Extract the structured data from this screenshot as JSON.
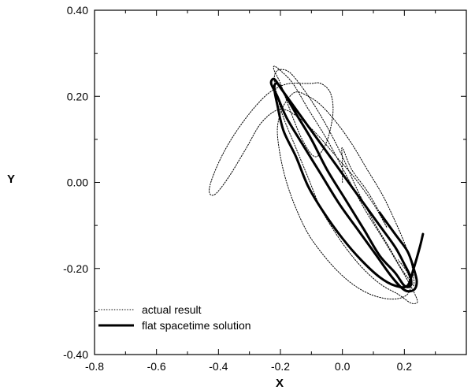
{
  "chart_data": {
    "type": "line",
    "xlabel": "X",
    "ylabel": "Y",
    "xlim": [
      -0.8,
      0.4
    ],
    "ylim": [
      -0.4,
      0.4
    ],
    "x_ticks": [
      -0.8,
      -0.6,
      -0.4,
      -0.2,
      0.0,
      0.2
    ],
    "x_tick_labels": [
      "-0.8",
      "-0.6",
      "-0.4",
      "-0.2",
      "0.0",
      "0.2"
    ],
    "y_ticks": [
      -0.4,
      -0.2,
      0.0,
      0.2,
      0.4
    ],
    "y_tick_labels": [
      "-0.40",
      "-0.20",
      "0.00",
      "0.20",
      "0.40"
    ],
    "legend_position": "bottom-left",
    "series": [
      {
        "name": "actual result",
        "style": "dotted",
        "color": "#000000",
        "x": [
          0.0,
          0.0,
          0.0,
          0.03,
          0.08,
          0.12,
          0.14,
          0.14,
          0.1,
          0.04,
          -0.02,
          -0.08,
          -0.14,
          -0.2,
          -0.26,
          -0.31,
          -0.36,
          -0.4,
          -0.42,
          -0.43,
          -0.42,
          -0.39,
          -0.35,
          -0.3,
          -0.25,
          -0.21,
          -0.17,
          -0.13,
          -0.1,
          -0.07,
          -0.04,
          -0.03,
          -0.04,
          -0.06,
          -0.09,
          -0.13,
          -0.17,
          -0.2,
          -0.22,
          -0.22,
          -0.2,
          -0.16,
          -0.11,
          -0.05,
          0.01,
          0.07,
          0.13,
          0.18,
          0.22,
          0.24,
          0.24,
          0.22,
          0.18,
          0.13,
          0.08,
          0.03,
          -0.02,
          -0.07,
          -0.11,
          -0.15,
          -0.19,
          -0.21,
          -0.22,
          -0.21,
          -0.18,
          -0.15,
          -0.1,
          -0.05,
          0.0,
          0.05,
          0.1,
          0.15,
          0.19,
          0.22,
          0.23,
          0.23,
          0.22,
          0.2,
          0.17,
          0.13,
          0.08,
          0.03,
          -0.02,
          -0.07,
          -0.11,
          -0.15,
          -0.18,
          -0.2,
          -0.21,
          -0.2,
          -0.18,
          -0.15,
          -0.11,
          -0.06,
          -0.01,
          0.04,
          0.09,
          0.14,
          0.18,
          0.21,
          0.22,
          0.21,
          0.18
        ],
        "y": [
          0.0,
          0.05,
          0.08,
          0.03,
          -0.02,
          -0.07,
          -0.1,
          -0.1,
          -0.05,
          0.01,
          0.06,
          0.11,
          0.15,
          0.17,
          0.14,
          0.08,
          0.02,
          -0.02,
          -0.03,
          -0.02,
          0.01,
          0.06,
          0.11,
          0.16,
          0.2,
          0.22,
          0.23,
          0.23,
          0.23,
          0.23,
          0.21,
          0.17,
          0.12,
          0.08,
          0.06,
          0.1,
          0.17,
          0.23,
          0.26,
          0.27,
          0.26,
          0.23,
          0.17,
          0.1,
          0.02,
          -0.06,
          -0.13,
          -0.19,
          -0.24,
          -0.27,
          -0.28,
          -0.28,
          -0.26,
          -0.24,
          -0.21,
          -0.17,
          -0.12,
          -0.06,
          0.01,
          0.08,
          0.15,
          0.2,
          0.24,
          0.26,
          0.26,
          0.24,
          0.19,
          0.13,
          0.06,
          -0.02,
          -0.09,
          -0.15,
          -0.2,
          -0.23,
          -0.24,
          -0.22,
          -0.18,
          -0.14,
          -0.09,
          -0.03,
          0.03,
          0.09,
          0.14,
          0.18,
          0.2,
          0.21,
          0.19,
          0.16,
          0.12,
          0.06,
          0.0,
          -0.06,
          -0.12,
          -0.17,
          -0.21,
          -0.24,
          -0.26,
          -0.27,
          -0.27,
          -0.26,
          -0.24,
          -0.21,
          -0.18
        ]
      },
      {
        "name": "flat spacetime solution",
        "style": "solid-thick",
        "color": "#000000",
        "x": [
          0.26,
          0.25,
          0.23,
          0.21,
          0.17,
          0.12,
          0.06,
          0.0,
          -0.06,
          -0.11,
          -0.15,
          -0.19,
          -0.21,
          -0.22,
          -0.21,
          -0.19,
          -0.15,
          -0.1,
          -0.05,
          0.01,
          0.07,
          0.12,
          0.17,
          0.2,
          0.22,
          0.22,
          0.2,
          0.17,
          0.12,
          0.06,
          0.0,
          -0.06,
          -0.12,
          -0.17,
          -0.2,
          -0.22,
          -0.23,
          -0.21,
          -0.18,
          -0.13,
          -0.07,
          -0.01,
          0.05,
          0.11,
          0.16,
          0.2,
          0.23,
          0.24,
          0.23,
          0.21,
          0.17,
          0.12
        ],
        "y": [
          -0.12,
          -0.15,
          -0.2,
          -0.24,
          -0.24,
          -0.22,
          -0.18,
          -0.13,
          -0.07,
          -0.01,
          0.06,
          0.12,
          0.18,
          0.22,
          0.23,
          0.21,
          0.16,
          0.1,
          0.03,
          -0.04,
          -0.11,
          -0.17,
          -0.21,
          -0.24,
          -0.24,
          -0.22,
          -0.19,
          -0.15,
          -0.1,
          -0.04,
          0.02,
          0.08,
          0.14,
          0.19,
          0.22,
          0.24,
          0.23,
          0.2,
          0.15,
          0.09,
          0.02,
          -0.05,
          -0.11,
          -0.17,
          -0.22,
          -0.25,
          -0.25,
          -0.23,
          -0.2,
          -0.16,
          -0.12,
          -0.07
        ]
      }
    ]
  }
}
